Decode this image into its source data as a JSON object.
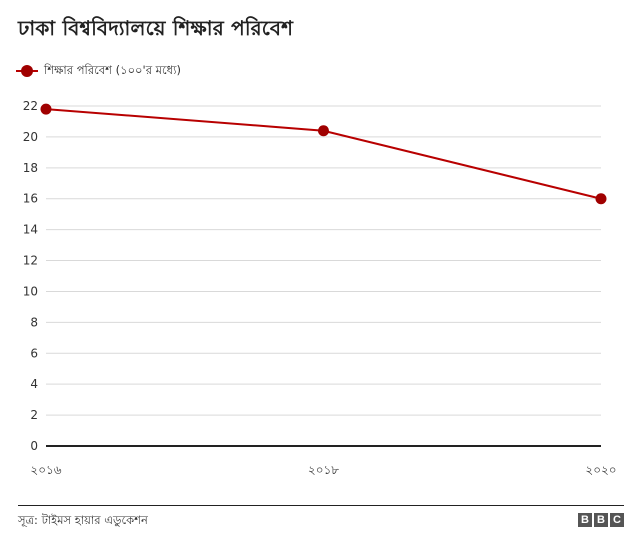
{
  "chart_data": {
    "type": "line",
    "title": "ঢাকা বিশ্ববিদ্যালয়ে শিক্ষার পরিবেশ",
    "categories": [
      "২০১৬",
      "২০১৮",
      "২০২০"
    ],
    "series": [
      {
        "name": "শিক্ষার পরিবেশ (১০০'র মধ্যে)",
        "values": [
          21.8,
          20.4,
          16.0
        ],
        "color": "#b80000"
      }
    ],
    "ylim": [
      0,
      22
    ],
    "yticks": [
      0,
      2,
      4,
      6,
      8,
      10,
      12,
      14,
      16,
      18,
      20,
      22
    ],
    "grid": true,
    "xlabel": "",
    "ylabel": "",
    "legend_position": "top-left"
  },
  "footer": {
    "source": "সূত্র: টাইমস হায়ার এডুকেশন",
    "brand_letters": [
      "B",
      "B",
      "C"
    ]
  }
}
